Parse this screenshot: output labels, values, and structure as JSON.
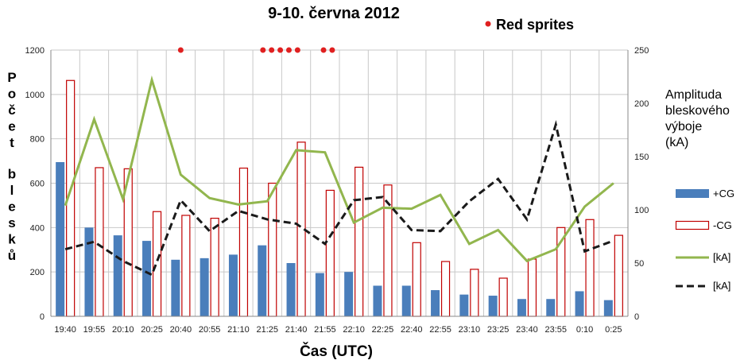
{
  "chart_data": {
    "type": "bar",
    "title": "9-10. června 2012",
    "xlabel": "Čas (UTC)",
    "ylabel_left": "Počet blesků",
    "ylabel_right_lines": [
      "Amplituda",
      "bleskového",
      "výboje",
      "(kA)"
    ],
    "ylim_left": [
      0,
      1200
    ],
    "ylim_right": [
      0,
      250
    ],
    "yticks_left": [
      "0",
      "200",
      "400",
      "600",
      "800",
      "1000",
      "1200"
    ],
    "yticks_right": [
      "0",
      "50",
      "100",
      "150",
      "200",
      "250"
    ],
    "categories": [
      "19:40",
      "19:55",
      "20:10",
      "20:25",
      "20:40",
      "20:55",
      "21:10",
      "21:25",
      "21:40",
      "21:55",
      "22:10",
      "22:25",
      "22:40",
      "22:55",
      "23:10",
      "23:25",
      "23:40",
      "23:55",
      "0:10",
      "0:25"
    ],
    "grid": true,
    "legend_placement": "right",
    "series": [
      {
        "name": "+CG",
        "kind": "bar",
        "axis": "left",
        "color": "#4a7ebb",
        "values": [
          695,
          400,
          365,
          340,
          255,
          262,
          278,
          320,
          240,
          195,
          200,
          138,
          138,
          118,
          98,
          93,
          78,
          78,
          113,
          73
        ]
      },
      {
        "name": "-CG",
        "kind": "bar",
        "axis": "left",
        "color": "#c00000",
        "fill": "none",
        "values": [
          1063,
          670,
          665,
          472,
          455,
          442,
          668,
          600,
          785,
          568,
          672,
          592,
          332,
          247,
          212,
          172,
          258,
          400,
          436,
          365
        ]
      },
      {
        "name": "[kA]",
        "kind": "line",
        "axis": "right",
        "color": "#92b64e",
        "style": "solid",
        "values": [
          104,
          185,
          110,
          222,
          133,
          111,
          105,
          108,
          156,
          154,
          88,
          102,
          101,
          114,
          68,
          81,
          52,
          63,
          103,
          125
        ]
      },
      {
        "name": "[kA]",
        "kind": "line",
        "axis": "right",
        "color": "#1a1a1a",
        "style": "dashed",
        "values": [
          63,
          70,
          52,
          39,
          109,
          80,
          99,
          91,
          87,
          68,
          109,
          112,
          81,
          80,
          108,
          129,
          91,
          180,
          61,
          71
        ]
      }
    ],
    "red_sprites": {
      "label": "Red sprites",
      "color": "#e02020",
      "y_left": 1200,
      "x_index": [
        4,
        6.85,
        7.15,
        7.45,
        7.75,
        8.05,
        8.95,
        9.25
      ]
    }
  }
}
